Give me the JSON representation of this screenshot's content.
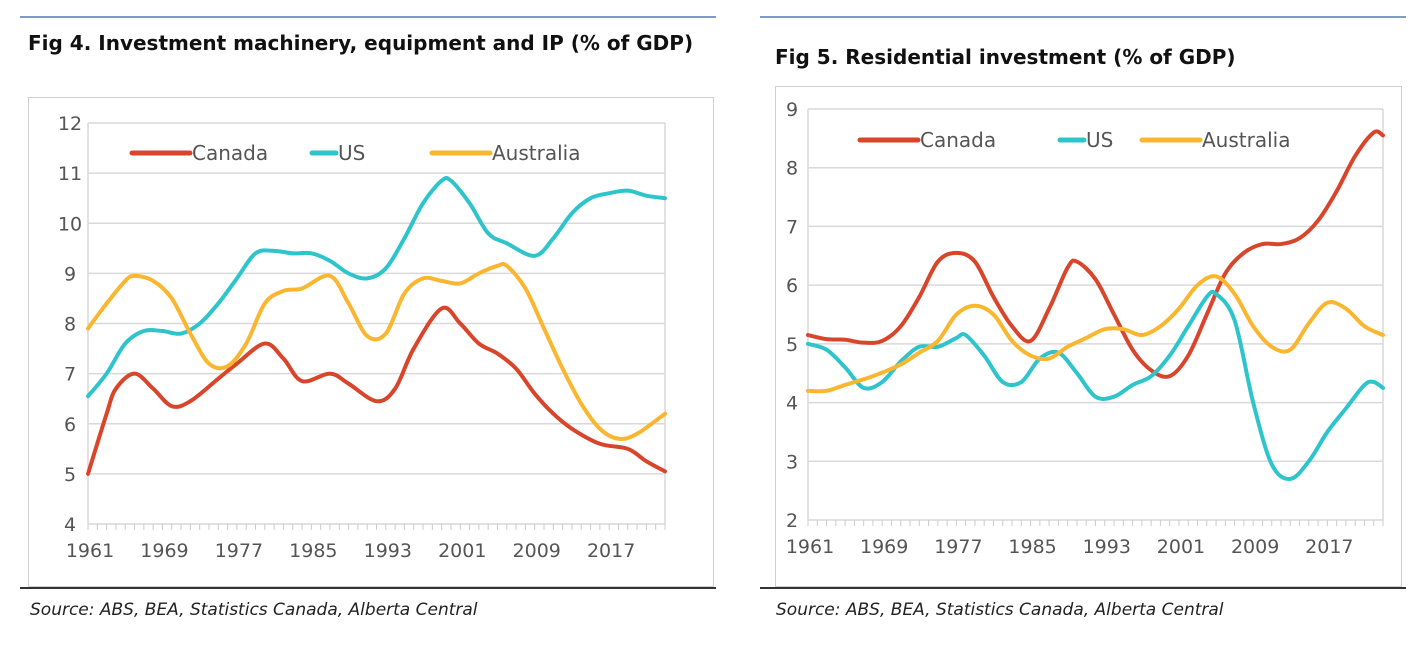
{
  "chart_data": [
    {
      "type": "line",
      "title": "Fig 4. Investment machinery, equipment and IP (% of GDP)",
      "xlabel": "",
      "ylabel": "",
      "ylim": [
        4,
        12
      ],
      "yticks": [
        4,
        5,
        6,
        7,
        8,
        9,
        10,
        11,
        12
      ],
      "xlim": [
        1961,
        2023
      ],
      "xticks": [
        1961,
        1969,
        1977,
        1985,
        1993,
        2001,
        2009,
        2017
      ],
      "grid": true,
      "legend": "top",
      "source": "Source: ABS, BEA, Statistics Canada, Alberta Central",
      "series": [
        {
          "name": "Canada",
          "color": "#d9452b",
          "points": [
            [
              1961,
              5.0
            ],
            [
              1963,
              6.2
            ],
            [
              1964,
              6.7
            ],
            [
              1966,
              7.0
            ],
            [
              1968,
              6.7
            ],
            [
              1970,
              6.35
            ],
            [
              1972,
              6.45
            ],
            [
              1975,
              6.9
            ],
            [
              1977,
              7.2
            ],
            [
              1980,
              7.6
            ],
            [
              1982,
              7.3
            ],
            [
              1984,
              6.85
            ],
            [
              1987,
              7.0
            ],
            [
              1989,
              6.8
            ],
            [
              1992,
              6.45
            ],
            [
              1994,
              6.7
            ],
            [
              1996,
              7.5
            ],
            [
              1999,
              8.3
            ],
            [
              2001,
              8.0
            ],
            [
              2003,
              7.6
            ],
            [
              2005,
              7.4
            ],
            [
              2007,
              7.1
            ],
            [
              2009,
              6.6
            ],
            [
              2011,
              6.2
            ],
            [
              2013,
              5.9
            ],
            [
              2016,
              5.6
            ],
            [
              2019,
              5.5
            ],
            [
              2021,
              5.25
            ],
            [
              2023,
              5.05
            ]
          ]
        },
        {
          "name": "US",
          "color": "#2ec4cc",
          "points": [
            [
              1961,
              6.55
            ],
            [
              1963,
              7.0
            ],
            [
              1965,
              7.6
            ],
            [
              1967,
              7.85
            ],
            [
              1969,
              7.85
            ],
            [
              1971,
              7.8
            ],
            [
              1973,
              8.0
            ],
            [
              1975,
              8.4
            ],
            [
              1977,
              8.9
            ],
            [
              1979,
              9.4
            ],
            [
              1981,
              9.45
            ],
            [
              1983,
              9.4
            ],
            [
              1985,
              9.4
            ],
            [
              1987,
              9.25
            ],
            [
              1989,
              9.0
            ],
            [
              1991,
              8.9
            ],
            [
              1993,
              9.1
            ],
            [
              1995,
              9.7
            ],
            [
              1997,
              10.4
            ],
            [
              1999,
              10.85
            ],
            [
              2000,
              10.85
            ],
            [
              2002,
              10.4
            ],
            [
              2004,
              9.8
            ],
            [
              2006,
              9.6
            ],
            [
              2009,
              9.35
            ],
            [
              2011,
              9.7
            ],
            [
              2013,
              10.2
            ],
            [
              2015,
              10.5
            ],
            [
              2017,
              10.6
            ],
            [
              2019,
              10.65
            ],
            [
              2021,
              10.55
            ],
            [
              2023,
              10.5
            ]
          ]
        },
        {
          "name": "Australia",
          "color": "#fbb630",
          "points": [
            [
              1961,
              7.9
            ],
            [
              1963,
              8.4
            ],
            [
              1965,
              8.85
            ],
            [
              1966,
              8.95
            ],
            [
              1968,
              8.85
            ],
            [
              1970,
              8.5
            ],
            [
              1972,
              7.8
            ],
            [
              1974,
              7.2
            ],
            [
              1976,
              7.15
            ],
            [
              1978,
              7.6
            ],
            [
              1980,
              8.4
            ],
            [
              1982,
              8.65
            ],
            [
              1984,
              8.7
            ],
            [
              1987,
              8.95
            ],
            [
              1989,
              8.4
            ],
            [
              1991,
              7.75
            ],
            [
              1993,
              7.8
            ],
            [
              1995,
              8.6
            ],
            [
              1997,
              8.9
            ],
            [
              1999,
              8.85
            ],
            [
              2001,
              8.8
            ],
            [
              2003,
              9.0
            ],
            [
              2005,
              9.15
            ],
            [
              2006,
              9.15
            ],
            [
              2008,
              8.7
            ],
            [
              2010,
              7.9
            ],
            [
              2012,
              7.1
            ],
            [
              2014,
              6.4
            ],
            [
              2016,
              5.9
            ],
            [
              2018,
              5.7
            ],
            [
              2020,
              5.8
            ],
            [
              2023,
              6.2
            ]
          ]
        }
      ]
    },
    {
      "type": "line",
      "title": "Fig 5. Residential investment (% of GDP)",
      "xlabel": "",
      "ylabel": "",
      "ylim": [
        2,
        9
      ],
      "yticks": [
        2,
        3,
        4,
        5,
        6,
        7,
        8,
        9
      ],
      "xlim": [
        1961,
        2023
      ],
      "xticks": [
        1961,
        1969,
        1977,
        1985,
        1993,
        2001,
        2009,
        2017
      ],
      "grid": true,
      "legend": "top",
      "source": "Source: ABS, BEA, Statistics Canada, Alberta Central",
      "series": [
        {
          "name": "Canada",
          "color": "#d9452b",
          "points": [
            [
              1961,
              5.15
            ],
            [
              1963,
              5.08
            ],
            [
              1965,
              5.07
            ],
            [
              1967,
              5.02
            ],
            [
              1969,
              5.05
            ],
            [
              1971,
              5.3
            ],
            [
              1973,
              5.8
            ],
            [
              1975,
              6.4
            ],
            [
              1977,
              6.55
            ],
            [
              1979,
              6.4
            ],
            [
              1981,
              5.8
            ],
            [
              1983,
              5.3
            ],
            [
              1985,
              5.05
            ],
            [
              1987,
              5.6
            ],
            [
              1989,
              6.3
            ],
            [
              1990,
              6.4
            ],
            [
              1992,
              6.1
            ],
            [
              1994,
              5.5
            ],
            [
              1996,
              4.9
            ],
            [
              1998,
              4.55
            ],
            [
              2000,
              4.45
            ],
            [
              2002,
              4.8
            ],
            [
              2004,
              5.5
            ],
            [
              2006,
              6.2
            ],
            [
              2008,
              6.55
            ],
            [
              2010,
              6.7
            ],
            [
              2012,
              6.7
            ],
            [
              2014,
              6.8
            ],
            [
              2016,
              7.1
            ],
            [
              2018,
              7.6
            ],
            [
              2020,
              8.2
            ],
            [
              2022,
              8.6
            ],
            [
              2023,
              8.55
            ]
          ]
        },
        {
          "name": "US",
          "color": "#2ec4cc",
          "points": [
            [
              1961,
              5.0
            ],
            [
              1963,
              4.9
            ],
            [
              1965,
              4.6
            ],
            [
              1967,
              4.25
            ],
            [
              1969,
              4.35
            ],
            [
              1971,
              4.7
            ],
            [
              1973,
              4.95
            ],
            [
              1975,
              4.95
            ],
            [
              1977,
              5.1
            ],
            [
              1978,
              5.15
            ],
            [
              1980,
              4.8
            ],
            [
              1982,
              4.35
            ],
            [
              1984,
              4.35
            ],
            [
              1986,
              4.75
            ],
            [
              1988,
              4.85
            ],
            [
              1990,
              4.5
            ],
            [
              1992,
              4.1
            ],
            [
              1994,
              4.1
            ],
            [
              1996,
              4.3
            ],
            [
              1998,
              4.45
            ],
            [
              2000,
              4.8
            ],
            [
              2002,
              5.3
            ],
            [
              2004,
              5.8
            ],
            [
              2005,
              5.85
            ],
            [
              2007,
              5.4
            ],
            [
              2009,
              4.0
            ],
            [
              2011,
              2.95
            ],
            [
              2013,
              2.7
            ],
            [
              2015,
              3.0
            ],
            [
              2017,
              3.5
            ],
            [
              2019,
              3.9
            ],
            [
              2021,
              4.3
            ],
            [
              2022,
              4.35
            ],
            [
              2023,
              4.25
            ]
          ]
        },
        {
          "name": "Australia",
          "color": "#fbb630",
          "points": [
            [
              1961,
              4.2
            ],
            [
              1963,
              4.2
            ],
            [
              1965,
              4.3
            ],
            [
              1968,
              4.45
            ],
            [
              1971,
              4.65
            ],
            [
              1973,
              4.85
            ],
            [
              1975,
              5.05
            ],
            [
              1977,
              5.5
            ],
            [
              1979,
              5.65
            ],
            [
              1981,
              5.5
            ],
            [
              1983,
              5.05
            ],
            [
              1985,
              4.8
            ],
            [
              1987,
              4.75
            ],
            [
              1989,
              4.95
            ],
            [
              1991,
              5.1
            ],
            [
              1993,
              5.25
            ],
            [
              1995,
              5.25
            ],
            [
              1997,
              5.15
            ],
            [
              1999,
              5.3
            ],
            [
              2001,
              5.6
            ],
            [
              2003,
              6.0
            ],
            [
              2005,
              6.15
            ],
            [
              2007,
              5.85
            ],
            [
              2009,
              5.3
            ],
            [
              2011,
              4.95
            ],
            [
              2013,
              4.9
            ],
            [
              2015,
              5.35
            ],
            [
              2017,
              5.7
            ],
            [
              2019,
              5.6
            ],
            [
              2021,
              5.3
            ],
            [
              2023,
              5.15
            ]
          ]
        }
      ]
    }
  ]
}
